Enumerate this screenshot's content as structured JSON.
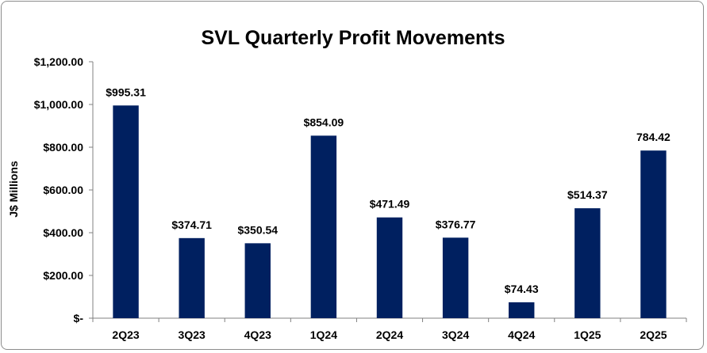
{
  "chart_data": {
    "type": "bar",
    "title": "SVL Quarterly Profit Movements",
    "xlabel": "",
    "ylabel": "J$ Millions",
    "categories": [
      "2Q23",
      "3Q23",
      "4Q23",
      "1Q24",
      "2Q24",
      "3Q24",
      "4Q24",
      "1Q25",
      "2Q25"
    ],
    "values": [
      995.31,
      374.71,
      350.54,
      854.09,
      471.49,
      376.77,
      74.43,
      514.37,
      784.42
    ],
    "data_labels": [
      "$995.31",
      "$374.71",
      "$350.54",
      "$854.09",
      "$471.49",
      "$376.77",
      "$74.43",
      "$514.37",
      "784.42"
    ],
    "ylim": [
      0,
      1200
    ],
    "yticks": [
      0,
      200,
      400,
      600,
      800,
      1000,
      1200
    ],
    "ytick_labels": [
      "$-",
      "$200.00",
      "$400.00",
      "$600.00",
      "$800.00",
      "$1,000.00",
      "$1,200.00"
    ],
    "bar_color": "#002060",
    "grid": false,
    "legend": "none"
  }
}
